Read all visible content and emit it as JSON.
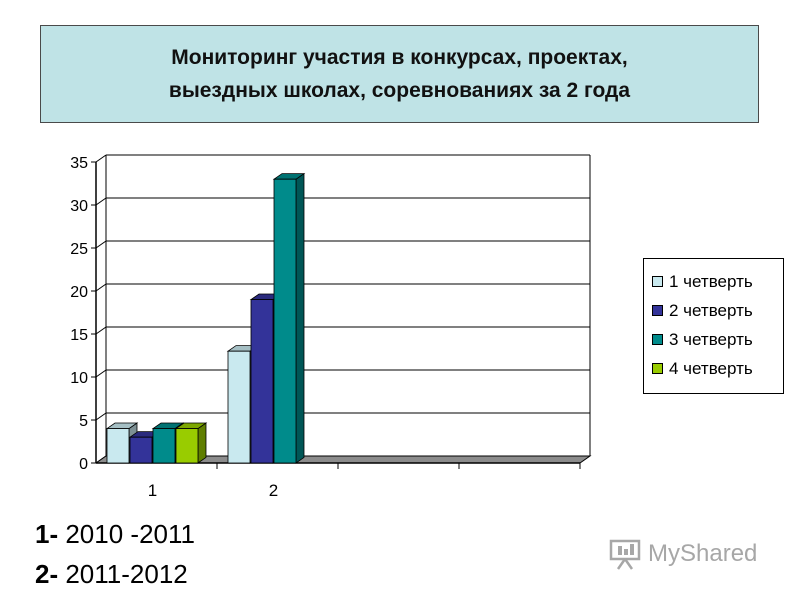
{
  "header": {
    "title_lines": [
      "Мониторинг участия в конкурсах, проектах,",
      "выездных школах, соревнованиях за 2 года"
    ]
  },
  "chart_data": {
    "type": "bar",
    "title": "Мониторинг участия в конкурсах, проектах, выездных школах, соревнованиях за 2 года",
    "categories": [
      "1",
      "2"
    ],
    "series": [
      {
        "name": "1 четверть",
        "color": "#c9e9ef",
        "values": [
          4,
          13
        ]
      },
      {
        "name": "2 четверть",
        "color": "#333399",
        "values": [
          3,
          19
        ]
      },
      {
        "name": "3 четверть",
        "color": "#008b8b",
        "values": [
          4,
          33
        ]
      },
      {
        "name": "4 четверть",
        "color": "#99cc00",
        "values": [
          4,
          0
        ]
      }
    ],
    "ylim": [
      0,
      35
    ],
    "yticks": [
      0,
      5,
      10,
      15,
      20,
      25,
      30,
      35
    ],
    "xlabel": "",
    "ylabel": "",
    "grid": true,
    "legend_position": "right",
    "three_d": true
  },
  "notes": [
    {
      "num": "1-",
      "text": " 2010 -2011"
    },
    {
      "num": "2-",
      "text": " 2011-2012"
    }
  ],
  "watermark": {
    "text": "MyShared",
    "icon": "presentation-board-icon"
  }
}
